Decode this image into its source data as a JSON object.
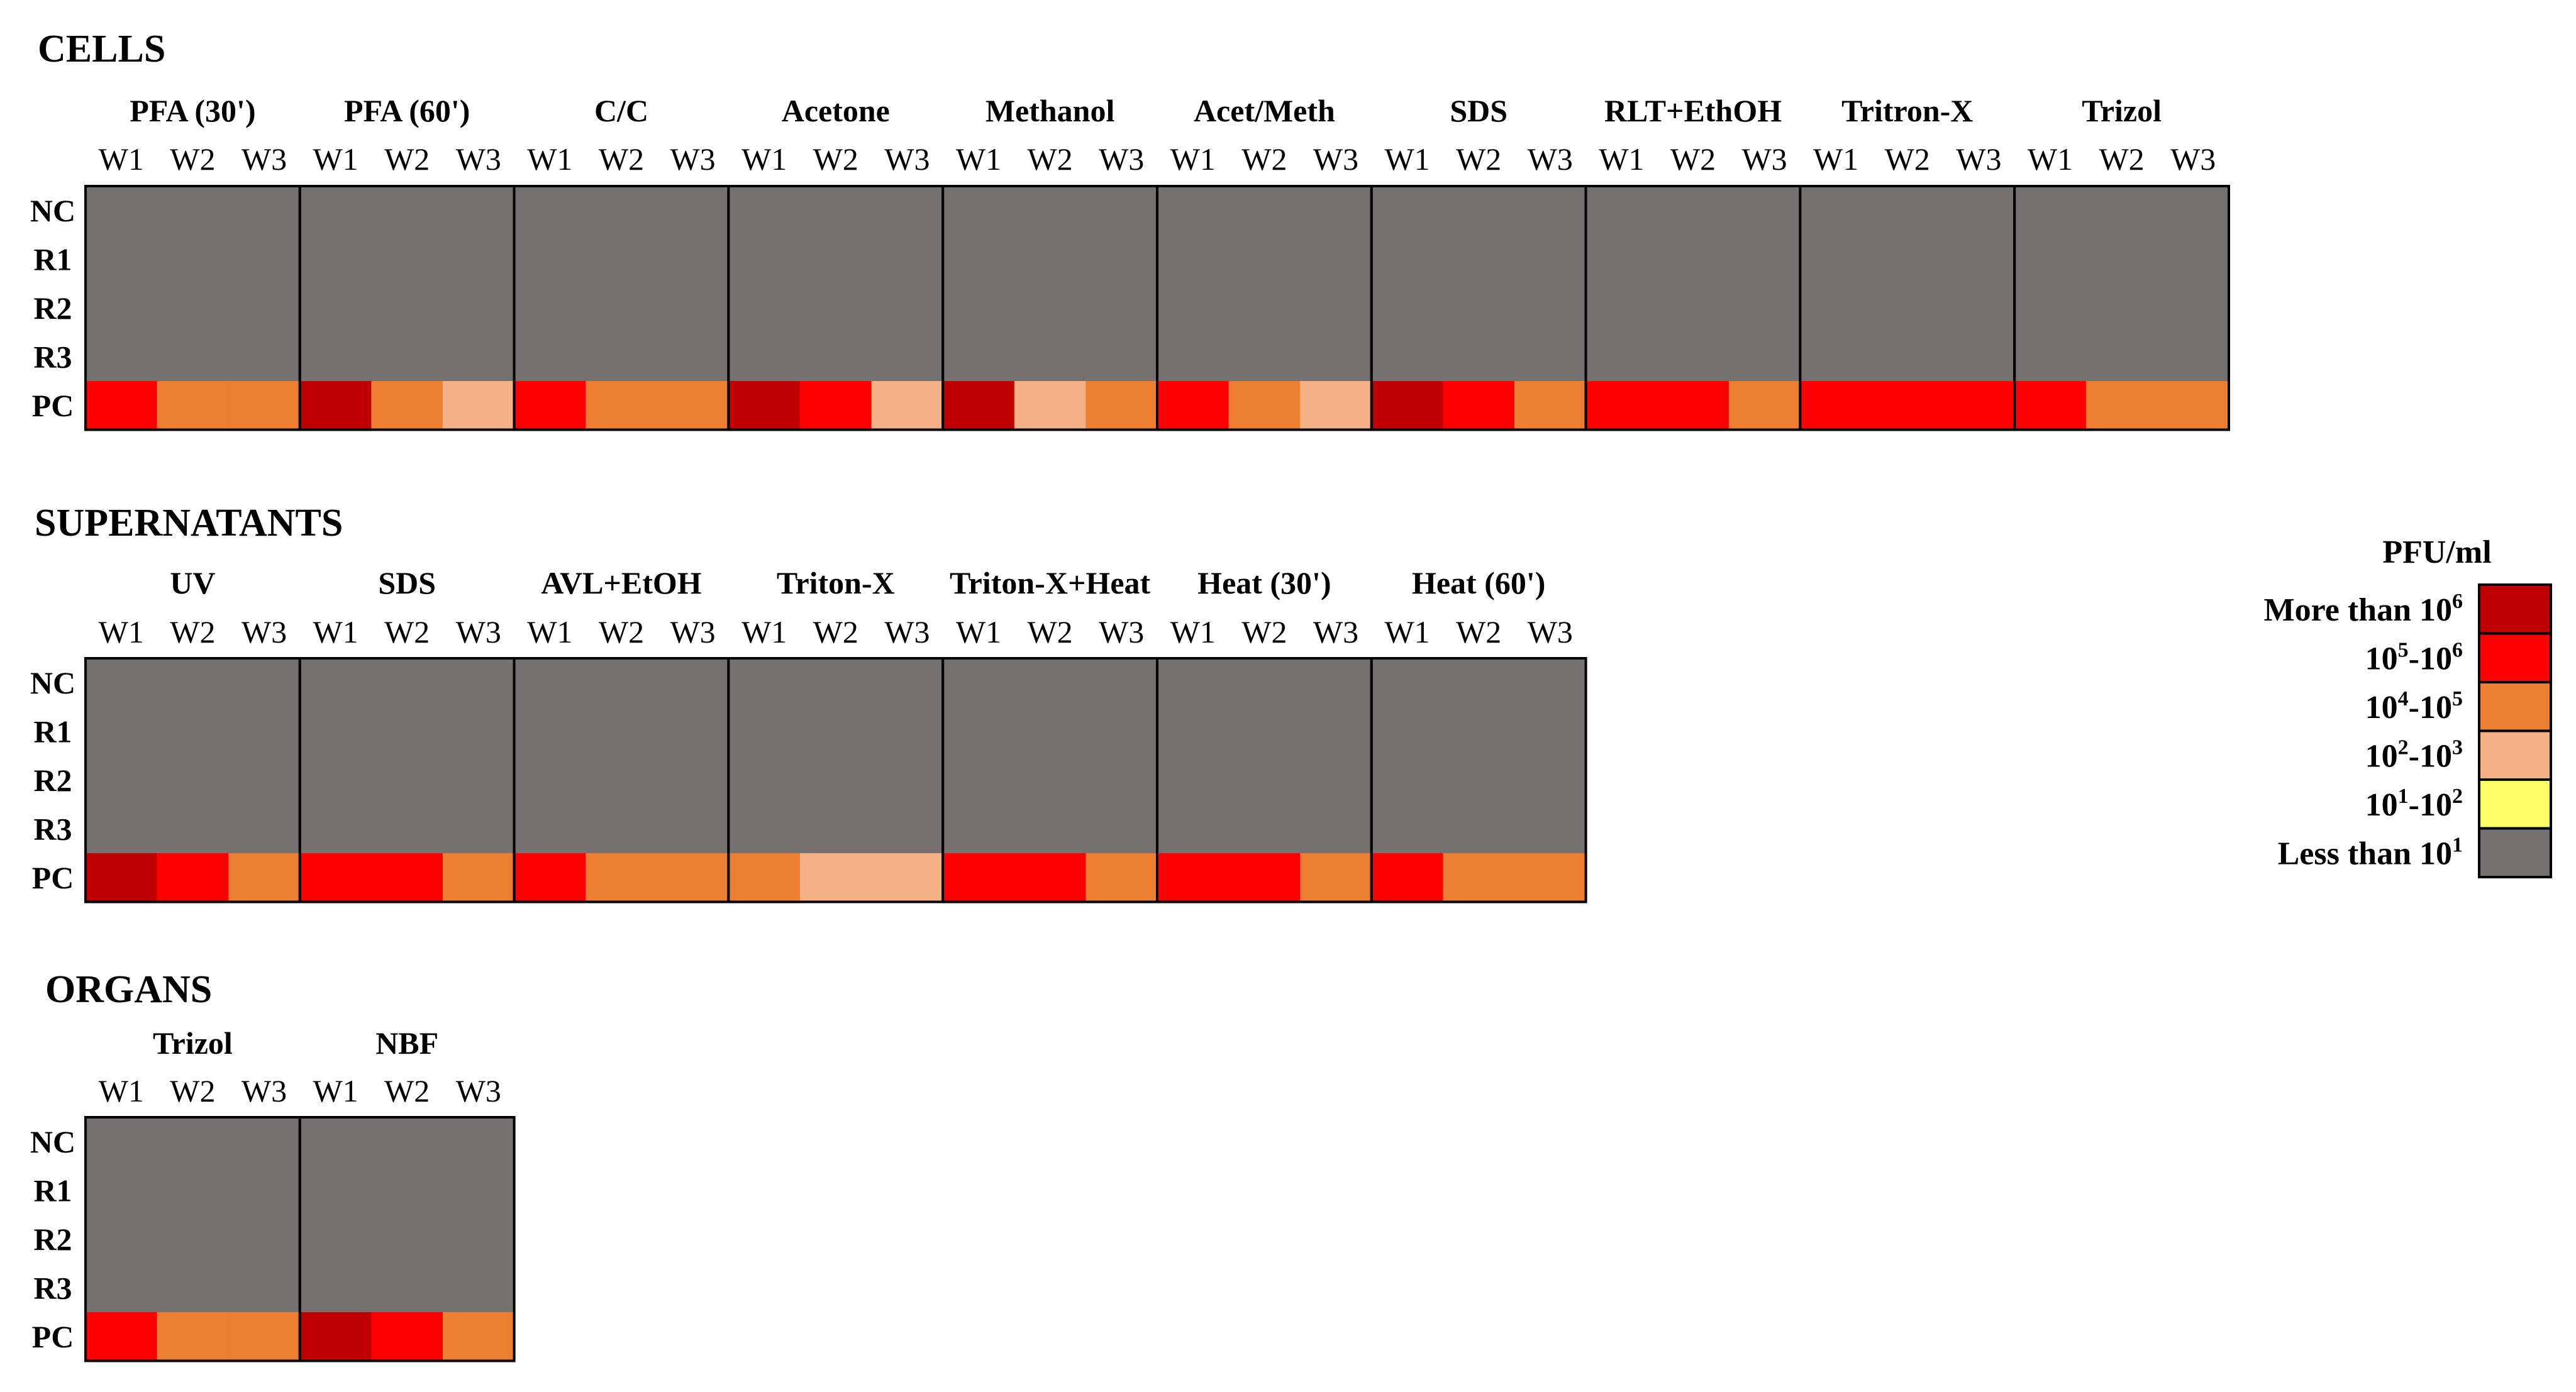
{
  "chart_data": {
    "type": "heatmap",
    "legend": {
      "title": "PFU/ml",
      "items": [
        {
          "key": "gt6",
          "label": "More than 10",
          "sup": "6",
          "color": "#c00000"
        },
        {
          "key": "5to6",
          "label": "10",
          "sup": "5",
          "mid": "-10",
          "sup2": "6",
          "color": "#ff0000"
        },
        {
          "key": "4to5",
          "label": "10",
          "sup": "4",
          "mid": "-10",
          "sup2": "5",
          "color": "#ed7d31"
        },
        {
          "key": "2to3",
          "label": "10",
          "sup": "2",
          "mid": "-10",
          "sup2": "3",
          "color": "#f4b183"
        },
        {
          "key": "1to2",
          "label": "10",
          "sup": "1",
          "mid": "-10",
          "sup2": "2",
          "color": "#ffff66"
        },
        {
          "key": "lt1",
          "label": "Less than 10",
          "sup": "1",
          "color": "#767171"
        }
      ]
    },
    "row_labels": [
      "NC",
      "R1",
      "R2",
      "R3",
      "PC"
    ],
    "week_labels": [
      "W1",
      "W2",
      "W3"
    ],
    "sections": [
      {
        "title": "CELLS",
        "groups": [
          {
            "name": "PFA (30')",
            "pc": [
              "5to6",
              "4to5",
              "4to5"
            ]
          },
          {
            "name": "PFA (60')",
            "pc": [
              "gt6",
              "4to5",
              "2to3"
            ]
          },
          {
            "name": "C/C",
            "pc": [
              "5to6",
              "4to5",
              "4to5"
            ]
          },
          {
            "name": "Acetone",
            "pc": [
              "gt6",
              "5to6",
              "2to3"
            ]
          },
          {
            "name": "Methanol",
            "pc": [
              "gt6",
              "2to3",
              "4to5"
            ]
          },
          {
            "name": "Acet/Meth",
            "pc": [
              "5to6",
              "4to5",
              "2to3"
            ]
          },
          {
            "name": "SDS",
            "pc": [
              "gt6",
              "5to6",
              "4to5"
            ]
          },
          {
            "name": "RLT+EthOH",
            "pc": [
              "5to6",
              "5to6",
              "4to5"
            ]
          },
          {
            "name": "Tritron-X",
            "pc": [
              "5to6",
              "5to6",
              "5to6"
            ]
          },
          {
            "name": "Trizol",
            "pc": [
              "5to6",
              "4to5",
              "4to5"
            ]
          }
        ]
      },
      {
        "title": "SUPERNATANTS",
        "groups": [
          {
            "name": "UV",
            "pc": [
              "gt6",
              "5to6",
              "4to5"
            ]
          },
          {
            "name": "SDS",
            "pc": [
              "5to6",
              "5to6",
              "4to5"
            ]
          },
          {
            "name": "AVL+EtOH",
            "pc": [
              "5to6",
              "4to5",
              "4to5"
            ]
          },
          {
            "name": "Triton-X",
            "pc": [
              "4to5",
              "2to3",
              "2to3"
            ]
          },
          {
            "name": "Triton-X+Heat",
            "pc": [
              "5to6",
              "5to6",
              "4to5"
            ]
          },
          {
            "name": "Heat (30')",
            "pc": [
              "5to6",
              "5to6",
              "4to5"
            ]
          },
          {
            "name": "Heat (60')",
            "pc": [
              "5to6",
              "4to5",
              "4to5"
            ]
          }
        ]
      },
      {
        "title": "ORGANS",
        "groups": [
          {
            "name": "Trizol",
            "pc": [
              "5to6",
              "4to5",
              "4to5"
            ]
          },
          {
            "name": "NBF",
            "pc": [
              "gt6",
              "5to6",
              "4to5"
            ]
          }
        ]
      }
    ],
    "non_pc_value": "lt1"
  }
}
